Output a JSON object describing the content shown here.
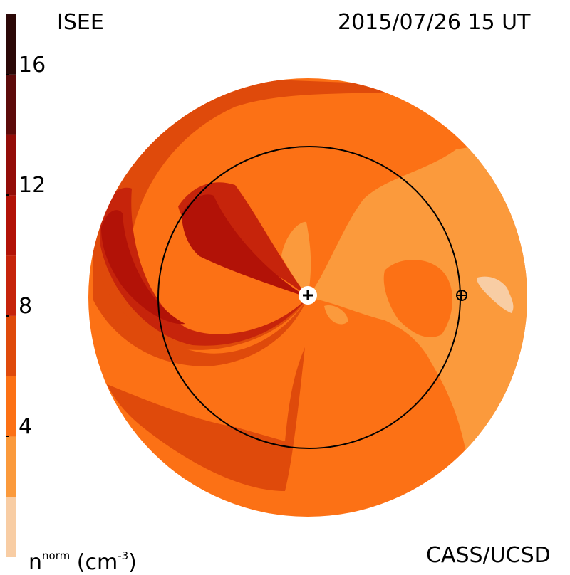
{
  "header": {
    "left_label": "ISEE",
    "right_label": "2015/07/26 15 UT"
  },
  "footer": {
    "left_label_base": "n",
    "left_label_sup": "norm",
    "left_label_unit": "(cm",
    "left_label_unit_sup": "-3",
    "left_label_unit_close": ")",
    "right_label": "CASS/UCSD"
  },
  "colorbar": {
    "ticks": [
      "4",
      "8",
      "12",
      "16"
    ],
    "tick_values": [
      4,
      8,
      12,
      16
    ],
    "range": [
      0,
      18
    ],
    "levels": [
      {
        "from": 0,
        "to": 2,
        "color": "#f8cda4"
      },
      {
        "from": 2,
        "to": 4,
        "color": "#fb9a3c"
      },
      {
        "from": 4,
        "to": 6,
        "color": "#fc7115"
      },
      {
        "from": 6,
        "to": 8,
        "color": "#df4a0b"
      },
      {
        "from": 8,
        "to": 10,
        "color": "#c6240b"
      },
      {
        "from": 10,
        "to": 12,
        "color": "#b21207"
      },
      {
        "from": 12,
        "to": 14,
        "color": "#930d08"
      },
      {
        "from": 14,
        "to": 16,
        "color": "#5d0b0a"
      },
      {
        "from": 16,
        "to": 18,
        "color": "#2b0807"
      }
    ]
  },
  "chart_data": {
    "type": "heatmap",
    "title": "",
    "quantity": "n^norm (cm^-3)",
    "colorscale_min": 0,
    "colorscale_max": 18,
    "markers": [
      {
        "name": "sun",
        "symbol": "plus-in-white-circle"
      },
      {
        "name": "earth",
        "symbol": "circle-cross"
      }
    ],
    "reference_circle": "1 AU orbit"
  }
}
